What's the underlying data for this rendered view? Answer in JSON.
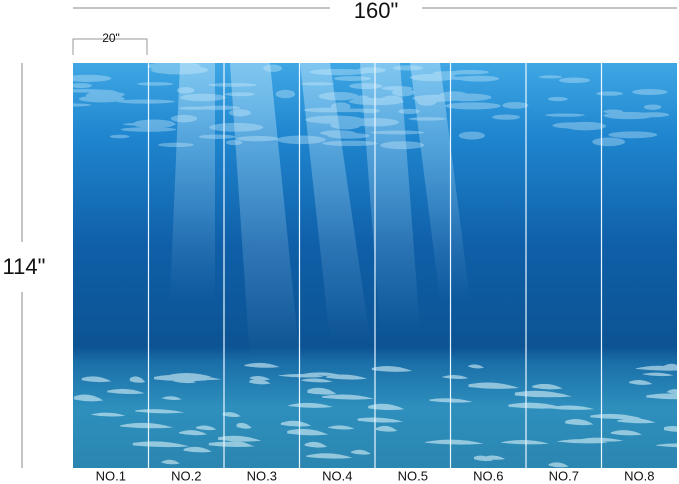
{
  "dimensions": {
    "width": "160\"",
    "height": "114\"",
    "panel_width": "20\""
  },
  "panels": [
    {
      "label": "NO.1"
    },
    {
      "label": "NO.2"
    },
    {
      "label": "NO.3"
    },
    {
      "label": "NO.4"
    },
    {
      "label": "NO.5"
    },
    {
      "label": "NO.6"
    },
    {
      "label": "NO.7"
    },
    {
      "label": "NO.8"
    }
  ]
}
